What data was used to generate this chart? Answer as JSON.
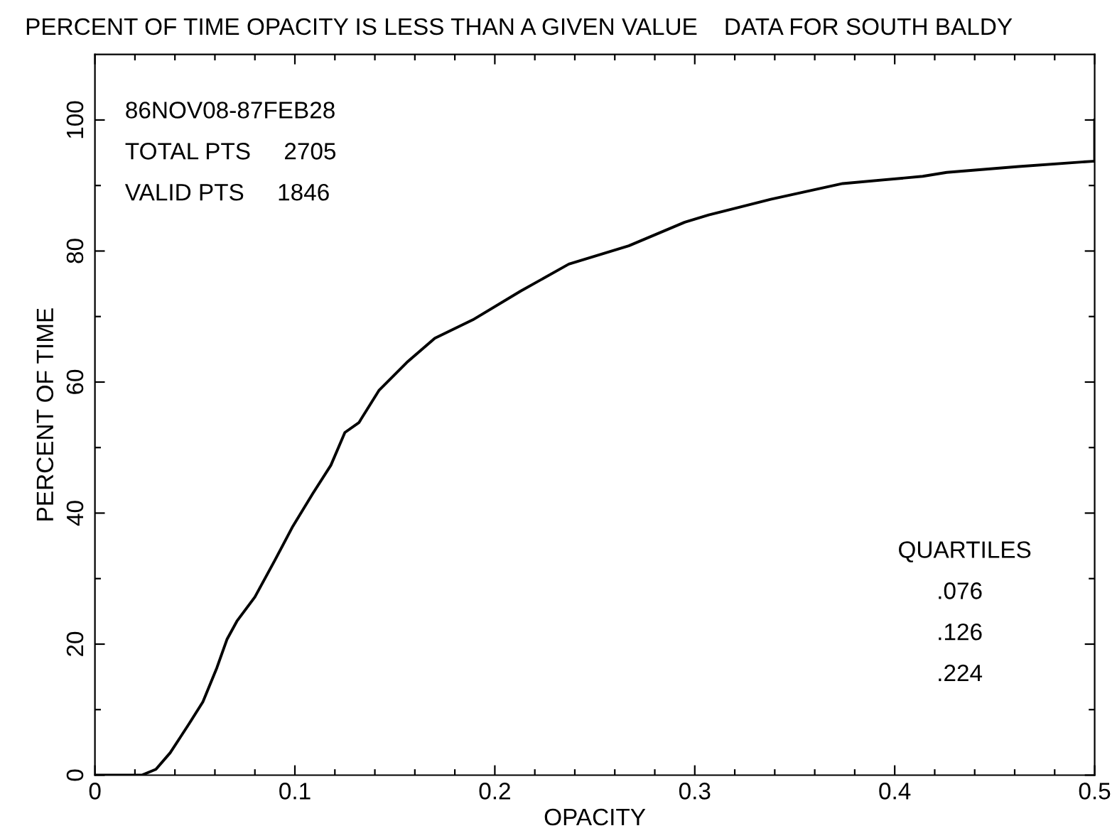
{
  "chart_data": {
    "type": "line",
    "title": "PERCENT OF TIME OPACITY IS LESS THAN A GIVEN VALUE    DATA FOR SOUTH BALDY",
    "xlabel": "OPACITY",
    "ylabel": "PERCENT OF TIME",
    "annotations": [
      "86NOV08-87FEB28",
      "TOTAL PTS     2705",
      "VALID PTS     1846",
      "QUARTILES",
      ".076",
      ".126",
      ".224"
    ],
    "series": [
      {
        "color": "#000000",
        "x": [
          0.0,
          0.0234,
          0.0305,
          0.0376,
          0.047,
          0.054,
          0.061,
          0.066,
          0.071,
          0.08,
          0.09,
          0.099,
          0.109,
          0.118,
          0.125,
          0.132,
          0.142,
          0.156,
          0.17,
          0.189,
          0.213,
          0.237,
          0.267,
          0.295,
          0.307,
          0.338,
          0.374,
          0.414,
          0.426,
          0.462,
          0.499,
          0.5,
          0.5
        ],
        "values": [
          0,
          0,
          0.9,
          3.4,
          7.8,
          11.2,
          16.4,
          20.7,
          23.5,
          27.2,
          32.8,
          38,
          43,
          47.3,
          52.3,
          53.8,
          58.7,
          63,
          66.7,
          69.5,
          73.9,
          78,
          80.8,
          84.4,
          85.5,
          87.9,
          90.3,
          91.4,
          92,
          92.9,
          93.7,
          93.7,
          100
        ]
      }
    ],
    "xlim": [
      0,
      0.5
    ],
    "ylim": [
      0,
      110
    ],
    "xticks": [
      0,
      {
        "value": 0.02,
        "label": null
      },
      {
        "value": 0.04,
        "label": null
      },
      {
        "value": 0.06,
        "label": null
      },
      {
        "value": 0.08,
        "label": null
      },
      0.1,
      {
        "value": 0.12,
        "label": null
      },
      {
        "value": 0.14,
        "label": null
      },
      {
        "value": 0.16,
        "label": null
      },
      {
        "value": 0.18,
        "label": null
      },
      0.2,
      {
        "value": 0.22,
        "label": null
      },
      {
        "value": 0.24,
        "label": null
      },
      {
        "value": 0.26,
        "label": null
      },
      {
        "value": 0.28,
        "label": null
      },
      0.3,
      {
        "value": 0.32,
        "label": null
      },
      {
        "value": 0.34,
        "label": null
      },
      {
        "value": 0.36,
        "label": null
      },
      {
        "value": 0.38,
        "label": null
      },
      0.4,
      {
        "value": 0.42,
        "label": null
      },
      {
        "value": 0.44,
        "label": null
      },
      {
        "value": 0.46,
        "label": null
      },
      {
        "value": 0.48,
        "label": null
      },
      0.5
    ],
    "yticks": [
      0,
      {
        "value": 10,
        "label": null
      },
      20,
      {
        "value": 30,
        "label": null
      },
      40,
      {
        "value": 50,
        "label": null
      },
      60,
      {
        "value": 70,
        "label": null
      },
      80,
      {
        "value": 90,
        "label": null
      },
      100
    ],
    "grid": false,
    "legend": false,
    "marker": "none",
    "line_style": "solid"
  }
}
